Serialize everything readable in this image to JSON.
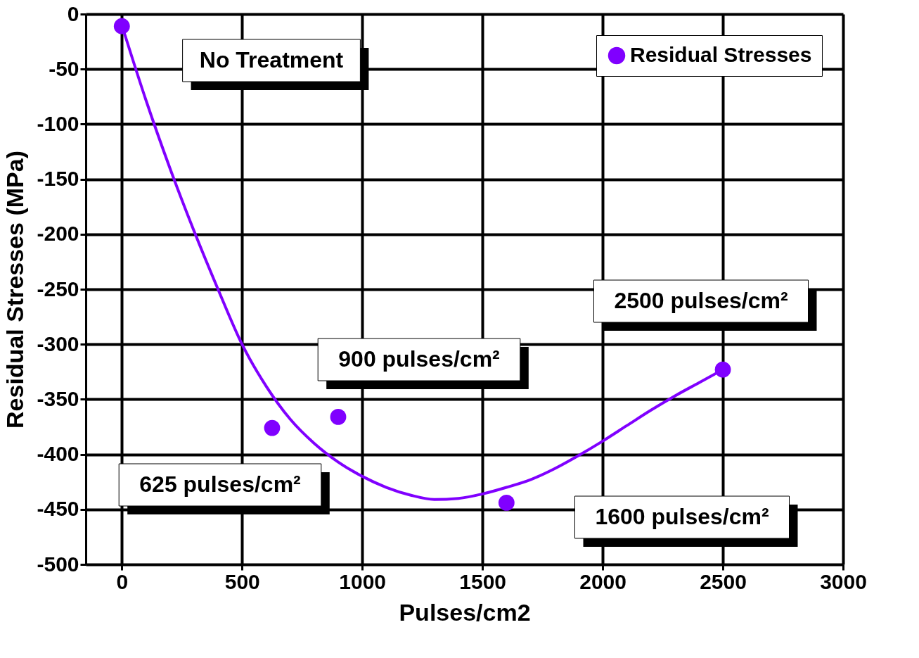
{
  "chart_data": {
    "type": "scatter",
    "xlabel": "Pulses/cm2",
    "ylabel": "Residual Stresses (MPa)",
    "xlim": [
      -150,
      3000
    ],
    "xticks": [
      0,
      500,
      1000,
      1500,
      2000,
      2500,
      3000
    ],
    "ylim": [
      -500,
      0
    ],
    "yticks": [
      -500,
      -450,
      -400,
      -350,
      -300,
      -250,
      -200,
      -150,
      -100,
      -50,
      0
    ],
    "grid": true,
    "legend": "top right",
    "marker": "circle",
    "series": [
      {
        "name": "Residual Stresses",
        "color": "#8000ff",
        "x": [
          0,
          625,
          900,
          1600,
          2500
        ],
        "values": [
          -11,
          -376,
          -366,
          -444,
          -323
        ]
      },
      {
        "type": "line",
        "color": "#8000ff",
        "line_style": "solid",
        "marker": "none",
        "x": [
          0,
          100,
          200,
          300,
          400,
          500,
          600,
          700,
          800,
          900,
          1000,
          1100,
          1200,
          1300,
          1400,
          1500,
          1600,
          1700,
          1800,
          1900,
          2000,
          2100,
          2200,
          2300,
          2400,
          2500
        ],
        "values": [
          -10,
          -78,
          -140,
          -197,
          -250,
          -300,
          -338,
          -368,
          -390,
          -407,
          -420,
          -430,
          -437,
          -441,
          -440,
          -436,
          -430,
          -423,
          -413,
          -401,
          -388,
          -374,
          -360,
          -347,
          -335,
          -323
        ]
      }
    ],
    "annotations": [
      "No Treatment",
      "625 pulses/cm²",
      "900 pulses/cm²",
      "1600 pulses/cm²",
      "2500 pulses/cm²"
    ]
  }
}
